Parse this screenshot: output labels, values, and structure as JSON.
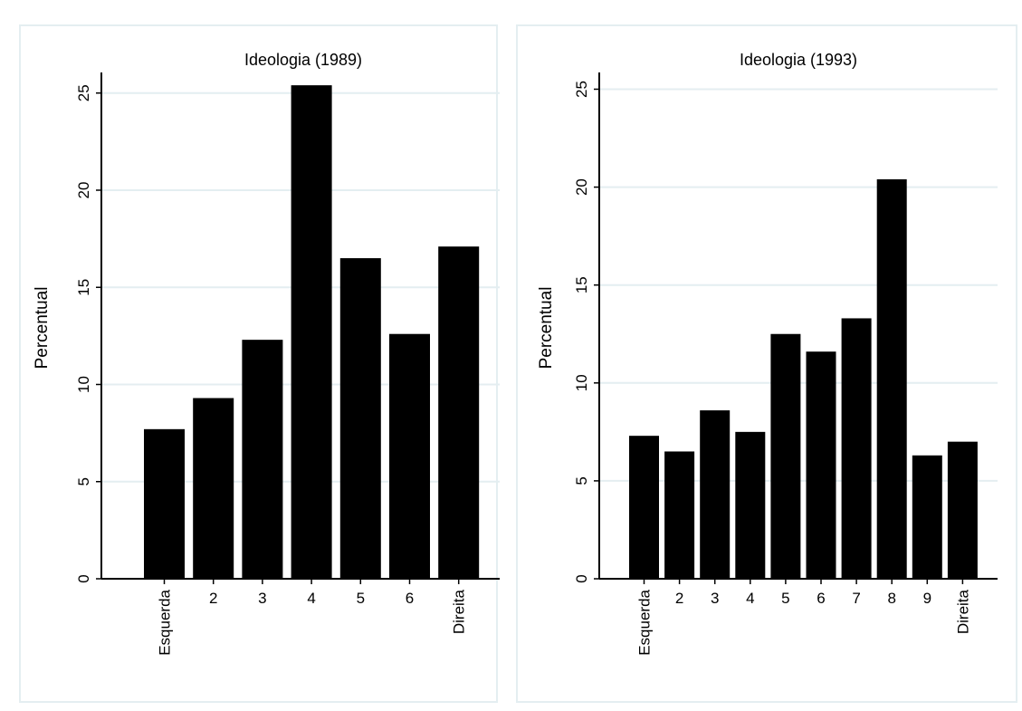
{
  "colors": {
    "bar": "#000000",
    "grid": "#e4eef1",
    "panel_border": "#e4eef1",
    "axis": "#000000"
  },
  "chart_data": [
    {
      "type": "bar",
      "title": "Ideologia (1989)",
      "ylabel": "Percentual",
      "xlabel": "",
      "categories": [
        "Esquerda",
        "2",
        "3",
        "4",
        "5",
        "6",
        "Direita"
      ],
      "values": [
        7.7,
        9.3,
        12.3,
        25.4,
        16.5,
        12.6,
        17.1
      ],
      "ylim": [
        0,
        25.5
      ],
      "yticks": [
        "0",
        "5",
        "10",
        "15",
        "20",
        "25"
      ],
      "grid": true,
      "legend": "none"
    },
    {
      "type": "bar",
      "title": "Ideologia (1993)",
      "ylabel": "Percentual",
      "xlabel": "",
      "categories": [
        "Esquerda",
        "2",
        "3",
        "4",
        "5",
        "6",
        "7",
        "8",
        "9",
        "Direita"
      ],
      "values": [
        7.3,
        6.5,
        8.6,
        7.5,
        12.5,
        11.6,
        13.3,
        20.4,
        6.3,
        7.0
      ],
      "ylim": [
        0,
        25.3
      ],
      "yticks": [
        "0",
        "5",
        "10",
        "15",
        "20",
        "25"
      ],
      "grid": true,
      "legend": "none"
    }
  ]
}
